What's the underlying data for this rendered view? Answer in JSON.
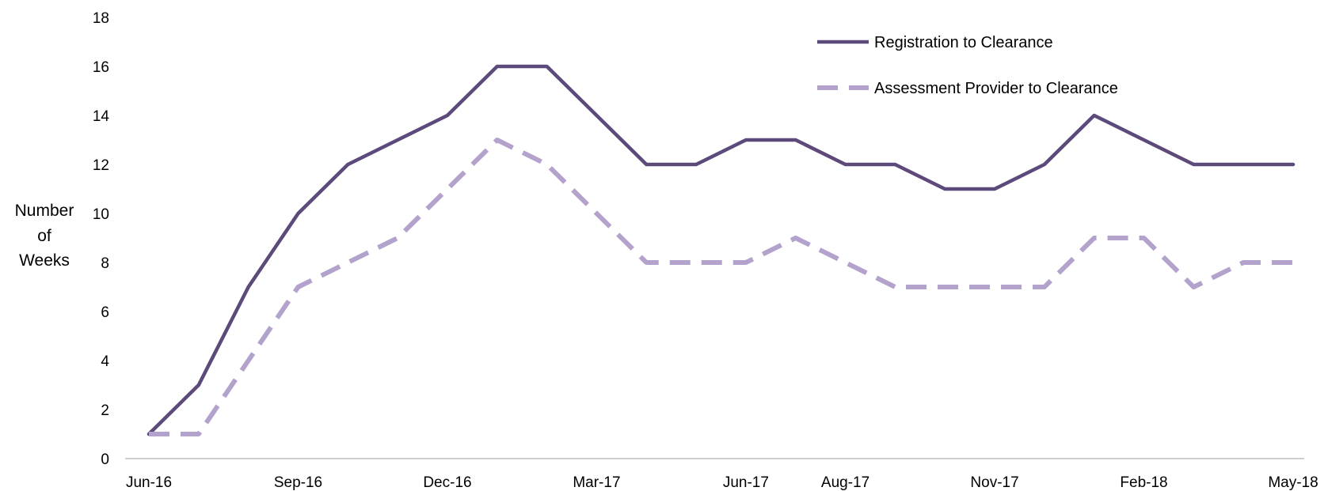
{
  "chart_data": {
    "type": "line",
    "title": "",
    "xlabel": "",
    "ylabel": [
      "Number",
      "of",
      "Weeks"
    ],
    "ylim": [
      0,
      18
    ],
    "yticks": [
      0,
      2,
      4,
      6,
      8,
      10,
      12,
      14,
      16,
      18
    ],
    "grid": false,
    "legend_position": "top-right",
    "x": [
      "Jun-16",
      "Jul-16",
      "Aug-16",
      "Sep-16",
      "Oct-16",
      "Nov-16",
      "Dec-16",
      "Jan-17",
      "Feb-17",
      "Mar-17",
      "Apr-17",
      "May-17",
      "Jun-17",
      "Jul-17",
      "Aug-17",
      "Sep-17",
      "Oct-17",
      "Nov-17",
      "Dec-17",
      "Jan-18",
      "Feb-18",
      "Mar-18",
      "Apr-18",
      "May-18"
    ],
    "xtick_labels": [
      "Jun-16",
      "Sep-16",
      "Dec-16",
      "Mar-17",
      "Jun-17",
      "Aug-17",
      "Nov-17",
      "Feb-18",
      "May-18"
    ],
    "series": [
      {
        "name": "Registration to Clearance",
        "color": "#5c4a7a",
        "style": "solid",
        "values": [
          1,
          3,
          7,
          10,
          12,
          13,
          14,
          16,
          16,
          14,
          12,
          12,
          13,
          13,
          12,
          12,
          11,
          11,
          12,
          14,
          13,
          12,
          12,
          12
        ]
      },
      {
        "name": "Assessment Provider to Clearance",
        "color": "#b3a2cc",
        "style": "dashed",
        "values": [
          1,
          1,
          4,
          7,
          8,
          9,
          11,
          13,
          12,
          10,
          8,
          8,
          8,
          9,
          8,
          7,
          7,
          7,
          7,
          9,
          9,
          7,
          8,
          8
        ]
      }
    ]
  }
}
